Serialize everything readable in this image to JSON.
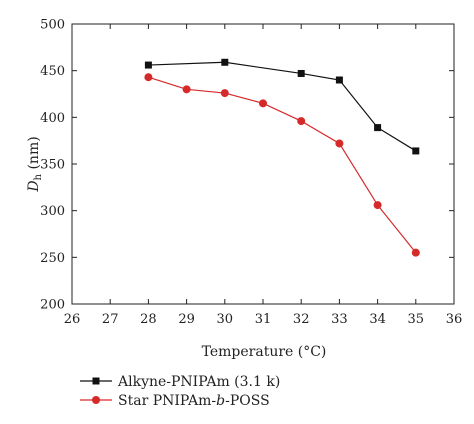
{
  "chart_data": {
    "type": "line",
    "xlabel": "Temperature (°C)",
    "ylabel_main": "D",
    "ylabel_sub": "h",
    "ylabel_unit": " (nm)",
    "ylim": [
      200,
      500
    ],
    "xlim": [
      26,
      36
    ],
    "x_ticks": [
      "26",
      "27",
      "28",
      "29",
      "30",
      "31",
      "32",
      "33",
      "34",
      "35",
      "36"
    ],
    "y_ticks": [
      "200",
      "250",
      "300",
      "350",
      "400",
      "450",
      "500"
    ],
    "x_categories": [
      28,
      29,
      30,
      31,
      32,
      33,
      34,
      35
    ],
    "grid": false,
    "legend_position": "bottom",
    "series": [
      {
        "name": "Alkyne-PNIPAm (3.1 k)",
        "name_parts": [
          "Alkyne-PNIPAm (3.1 k)"
        ],
        "color": "#111111",
        "marker": "square",
        "x": [
          28,
          30,
          32,
          33,
          34,
          35
        ],
        "values": [
          456,
          459,
          447,
          440,
          389,
          364
        ]
      },
      {
        "name": "Star PNIPAm-b-POSS",
        "name_parts": [
          "Star PNIPAm-",
          "b",
          "-POSS"
        ],
        "color": "#d62a2a",
        "marker": "circle",
        "x": [
          28,
          29,
          30,
          31,
          32,
          33,
          34,
          35
        ],
        "values": [
          443,
          430,
          426,
          415,
          396,
          372,
          306,
          255
        ]
      }
    ]
  }
}
